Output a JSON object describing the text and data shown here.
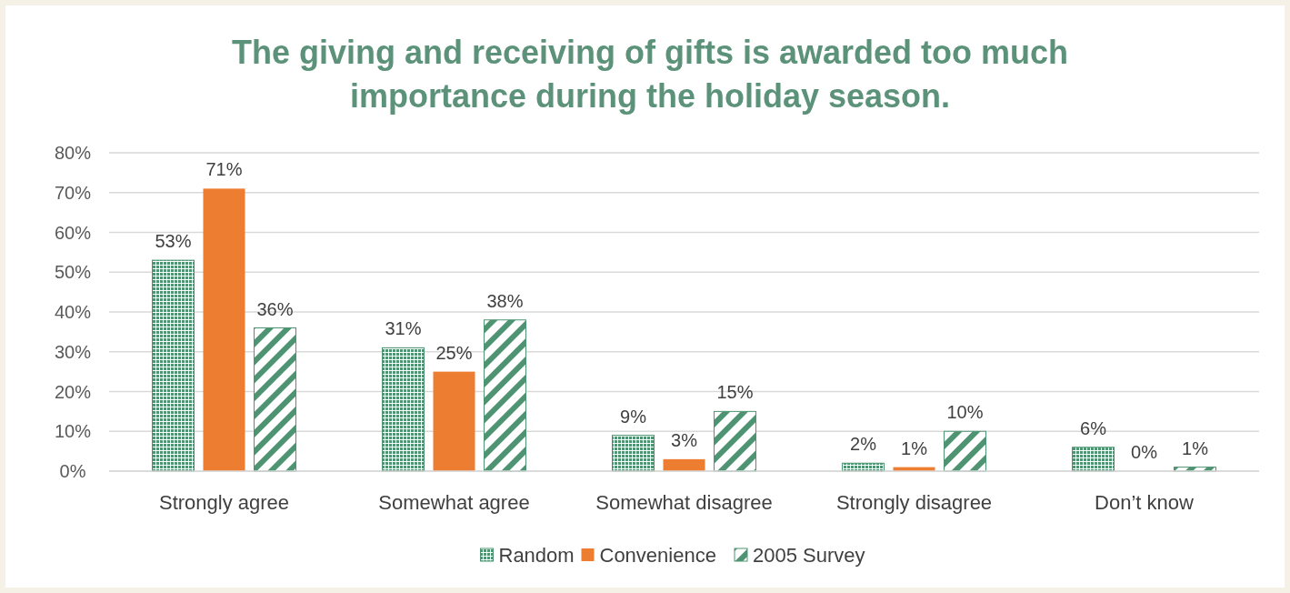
{
  "chart_data": {
    "type": "bar",
    "title": "The giving and receiving of gifts is awarded too much importance during the holiday season.",
    "categories": [
      "Strongly agree",
      "Somewhat agree",
      "Somewhat disagree",
      "Strongly disagree",
      "Don’t know"
    ],
    "series": [
      {
        "name": "Random",
        "color": "#4e9372",
        "values": [
          53,
          31,
          9,
          2,
          6
        ],
        "value_labels": [
          "53%",
          "31%",
          "9%",
          "2%",
          "6%"
        ]
      },
      {
        "name": "Convenience",
        "color": "#ed7d31",
        "values": [
          71,
          25,
          3,
          1,
          0
        ],
        "value_labels": [
          "71%",
          "25%",
          "3%",
          "1%",
          "0%"
        ]
      },
      {
        "name": "2005 Survey",
        "color": "#4e9372",
        "values": [
          36,
          38,
          15,
          10,
          1
        ],
        "value_labels": [
          "36%",
          "38%",
          "15%",
          "10%",
          "1%"
        ]
      }
    ],
    "ylim": [
      0,
      80
    ],
    "yticks": [
      {
        "value": 0,
        "label": "0%"
      },
      {
        "value": 10,
        "label": "10%"
      },
      {
        "value": 20,
        "label": "20%"
      },
      {
        "value": 30,
        "label": "30%"
      },
      {
        "value": 40,
        "label": "40%"
      },
      {
        "value": 50,
        "label": "50%"
      },
      {
        "value": 60,
        "label": "60%"
      },
      {
        "value": 70,
        "label": "70%"
      },
      {
        "value": 80,
        "label": "80%"
      }
    ],
    "grid": "y",
    "legend": "bottom"
  }
}
